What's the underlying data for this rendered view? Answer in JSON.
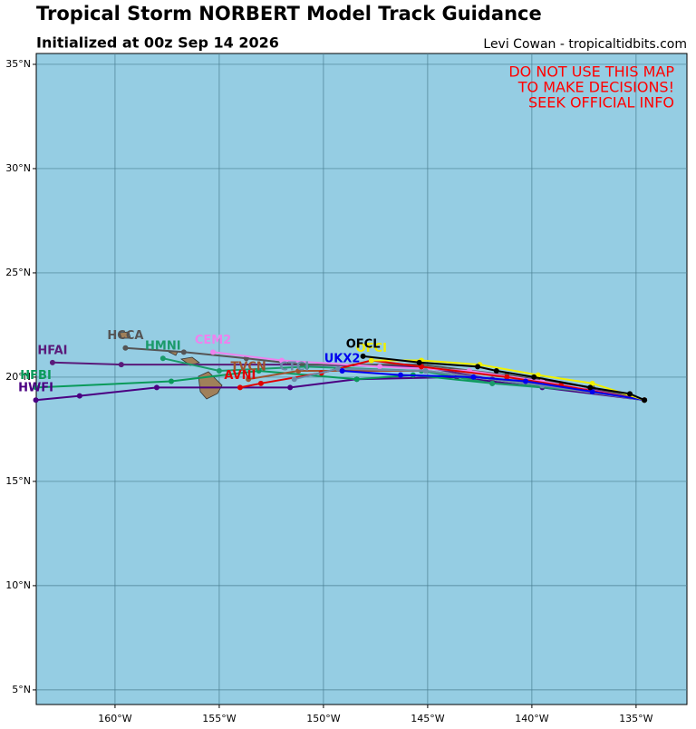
{
  "header": {
    "title": "Tropical Storm NORBERT Model Track Guidance",
    "subtitle": "Initialized at 00z Sep 14 2026",
    "credit": "Levi Cowan - tropicaltidbits.com"
  },
  "warning": [
    "DO NOT USE THIS MAP",
    "TO MAKE DECISIONS!",
    "SEEK OFFICIAL INFO"
  ],
  "map": {
    "lon_range": [
      -163.78,
      -132.56
    ],
    "lat_range": [
      4.3,
      35.52
    ],
    "lon_ticks": [
      {
        "value": -160,
        "label": "160°W"
      },
      {
        "value": -155,
        "label": "155°W"
      },
      {
        "value": -150,
        "label": "150°W"
      },
      {
        "value": -145,
        "label": "145°W"
      },
      {
        "value": -140,
        "label": "140°W"
      },
      {
        "value": -135,
        "label": "135°W"
      }
    ],
    "lat_ticks": [
      {
        "value": 5,
        "label": "5°N"
      },
      {
        "value": 10,
        "label": "10°N"
      },
      {
        "value": 15,
        "label": "15°N"
      },
      {
        "value": 20,
        "label": "20°N"
      },
      {
        "value": 25,
        "label": "25°N"
      },
      {
        "value": 30,
        "label": "30°N"
      },
      {
        "value": 35,
        "label": "35°N"
      }
    ],
    "tracks": [
      {
        "name": "HWFI",
        "color": "#4b0082",
        "lon": [
          -134.6,
          -139.5,
          -143.6,
          -148.4,
          -151.6,
          -158.0,
          -161.7,
          -163.8
        ],
        "lat": [
          18.9,
          19.5,
          20.0,
          19.9,
          19.5,
          19.5,
          19.1,
          18.9
        ]
      },
      {
        "name": "HFBI",
        "color": "#0a9a5a",
        "lon": [
          -134.6,
          -137.3,
          -141.9,
          -145.7,
          -148.4,
          -153.1,
          -157.3,
          -163.8
        ],
        "lat": [
          18.9,
          19.4,
          19.7,
          20.1,
          19.9,
          20.3,
          19.8,
          19.5
        ]
      },
      {
        "name": "HFAI",
        "color": "#5a1a7a",
        "lon": [
          -134.6,
          -137.1,
          -141.9,
          -145.3,
          -151.0,
          -159.7,
          -163.0
        ],
        "lat": [
          18.9,
          19.4,
          19.9,
          20.5,
          20.6,
          20.6,
          20.7
        ]
      },
      {
        "name": "HCCA",
        "color": "#555555",
        "lon": [
          -134.6,
          -137.1,
          -141.2,
          -145.3,
          -151.0,
          -153.7,
          -156.7,
          -159.5
        ],
        "lat": [
          18.9,
          19.5,
          20.1,
          20.6,
          20.6,
          20.9,
          21.2,
          21.4
        ]
      },
      {
        "name": "HMNI",
        "color": "#1a9a6a",
        "lon": [
          -134.6,
          -137.1,
          -141.9,
          -145.3,
          -150.8,
          -155.0,
          -157.7
        ],
        "lat": [
          18.9,
          19.3,
          19.7,
          20.3,
          20.5,
          20.3,
          20.9
        ]
      },
      {
        "name": "CEM2",
        "color": "#ee82ee",
        "lon": [
          -134.6,
          -139.5,
          -143.0,
          -147.3,
          -152.0,
          -155.3
        ],
        "lat": [
          18.9,
          19.8,
          20.3,
          20.5,
          20.8,
          21.2
        ]
      },
      {
        "name": "TVCN",
        "color": "#a0522d",
        "lon": [
          -134.6,
          -139.5,
          -145.1,
          -151.2,
          -153.6
        ],
        "lat": [
          18.9,
          19.6,
          20.3,
          20.3,
          19.9
        ]
      },
      {
        "name": "AVNI",
        "color": "#e00000",
        "lon": [
          -134.6,
          -138.6,
          -141.2,
          -145.3,
          -147.7,
          -150.1,
          -153.0,
          -154.0
        ],
        "lat": [
          18.9,
          19.6,
          20.0,
          20.5,
          20.8,
          20.2,
          19.7,
          19.5
        ]
      },
      {
        "name": "CTCI",
        "color": "#6a8aaa",
        "lon": [
          -134.6,
          -139.5,
          -145.1,
          -149.3,
          -151.4
        ],
        "lat": [
          18.9,
          19.6,
          20.3,
          20.4,
          19.9
        ]
      },
      {
        "name": "UKX2",
        "color": "#0000ee",
        "lon": [
          -134.6,
          -137.1,
          -140.3,
          -142.8,
          -146.3,
          -149.1
        ],
        "lat": [
          18.9,
          19.3,
          19.8,
          20.0,
          20.1,
          20.3
        ]
      },
      {
        "name": "OFCI",
        "color": "#f0f000",
        "lon": [
          -134.6,
          -137.1,
          -139.7,
          -142.5,
          -145.3,
          -147.7
        ],
        "lat": [
          18.9,
          19.7,
          20.1,
          20.6,
          20.8,
          20.8
        ]
      },
      {
        "name": "OFCL",
        "color": "#000000",
        "lon": [
          -134.6,
          -135.3,
          -137.2,
          -139.9,
          -141.7,
          -142.6,
          -145.4,
          -148.1
        ],
        "lat": [
          18.9,
          19.2,
          19.5,
          20.0,
          20.3,
          20.5,
          20.7,
          21.0
        ]
      }
    ]
  }
}
